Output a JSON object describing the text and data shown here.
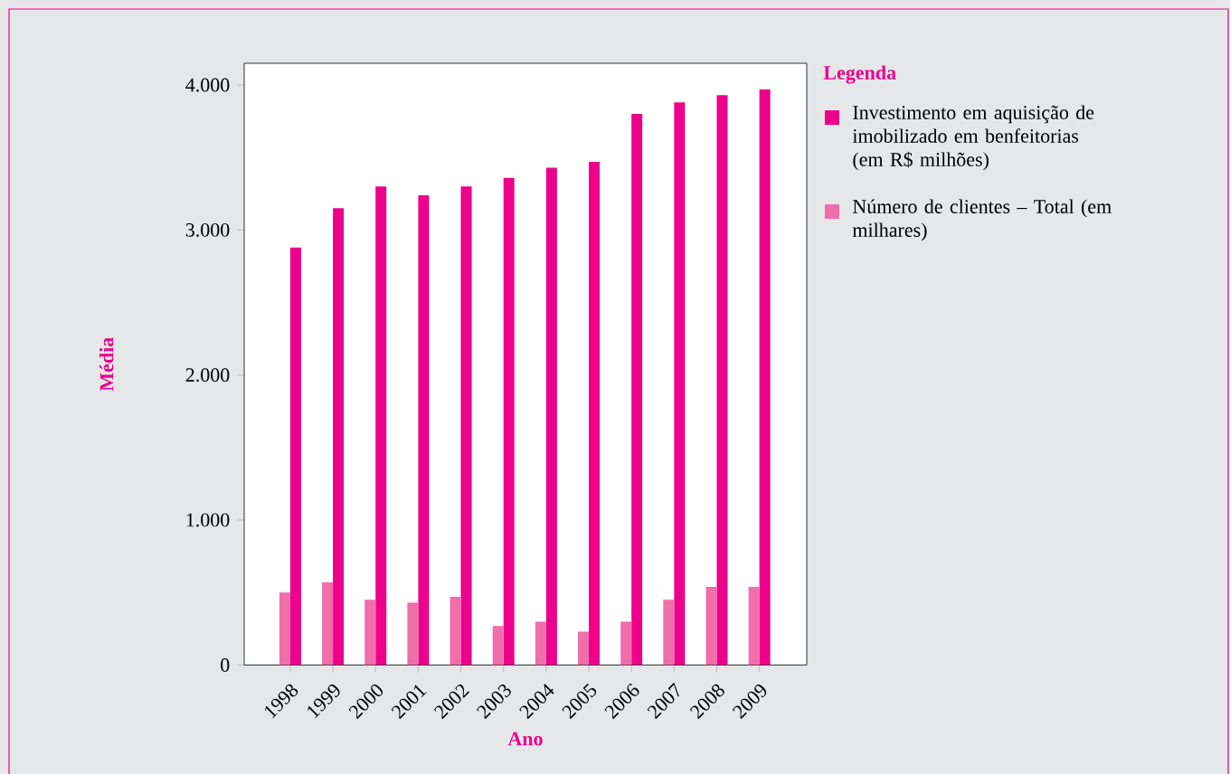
{
  "chart_data": {
    "type": "bar",
    "xlabel": "Ano",
    "ylabel": "Média",
    "legend_title": "Legenda",
    "categories": [
      "1998",
      "1999",
      "2000",
      "2001",
      "2002",
      "2003",
      "2004",
      "2005",
      "2006",
      "2007",
      "2008",
      "2009"
    ],
    "series": [
      {
        "name": "Investimento em aquisição de imobilizado em benfeitorias (em R$ milhões)",
        "color": "#ec008c",
        "values": [
          2880,
          3150,
          3300,
          3240,
          3300,
          3360,
          3430,
          3470,
          3800,
          3880,
          3930,
          3970
        ]
      },
      {
        "name": "Número de clientes – Total (em milhares)",
        "color": "#f06eaa",
        "values": [
          500,
          570,
          450,
          430,
          470,
          270,
          300,
          230,
          300,
          450,
          540,
          540
        ]
      }
    ],
    "ylim": [
      0,
      4150
    ],
    "yticks": [
      {
        "value": 0,
        "label": "0"
      },
      {
        "value": 1000,
        "label": "1.000"
      },
      {
        "value": 2000,
        "label": "2.000"
      },
      {
        "value": 3000,
        "label": "3.000"
      },
      {
        "value": 4000,
        "label": "4.000"
      }
    ],
    "grid": false,
    "legend": "right"
  }
}
